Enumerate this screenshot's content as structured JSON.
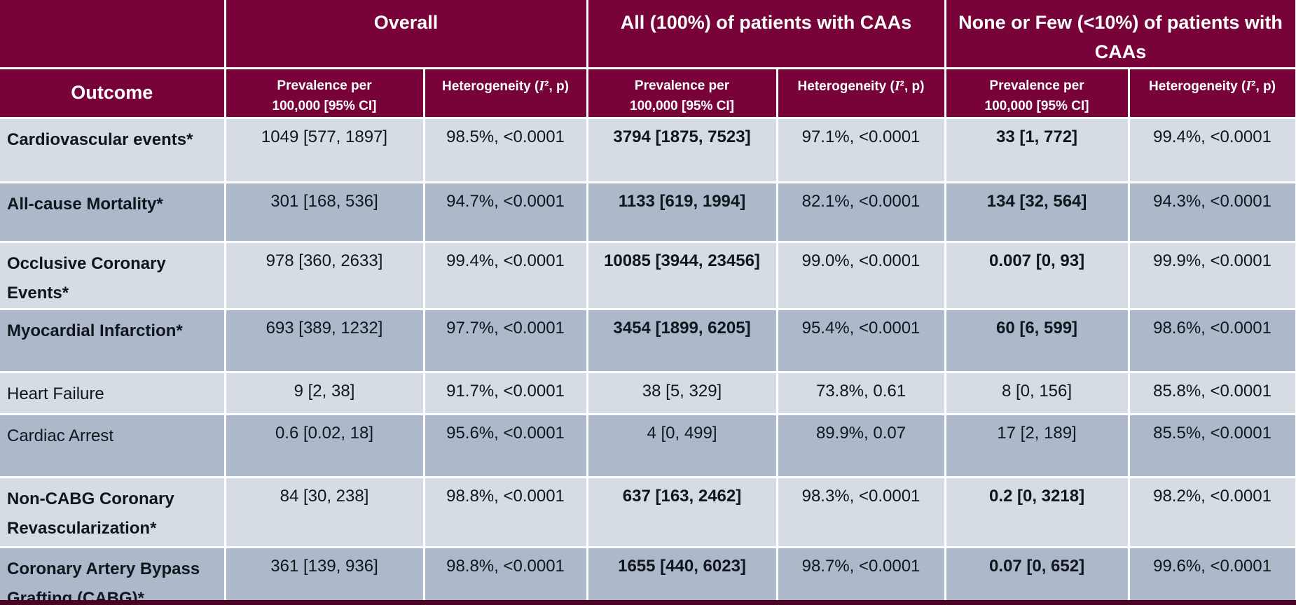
{
  "colors": {
    "header_maroon": "#770339",
    "row_light": "#d6dce4",
    "row_dark": "#adb9ca",
    "border_white": "#ffffff",
    "text_dark": "#10161e",
    "bottom_bar": "#4d0323"
  },
  "table": {
    "outcome_header": "Outcome",
    "col_groups": [
      {
        "label": "Overall"
      },
      {
        "label": "All (100%) of patients with CAAs"
      },
      {
        "label": "None or Few (<10%) of patients with CAAs"
      }
    ],
    "sub": {
      "prev_line1": "Prevalence per",
      "prev_line2": "100,000 [95% CI]",
      "het_prefix": "Heterogeneity (",
      "het_i": "I",
      "het_suffix": "², p)"
    },
    "rows": [
      {
        "outcome": "Cardiovascular events*",
        "emphasis": true,
        "overall_prev": "1049 [577, 1897]",
        "overall_het": "98.5%, <0.0001",
        "all_prev": "3794 [1875, 7523]",
        "all_het": "97.1%, <0.0001",
        "none_prev": "33 [1, 772]",
        "none_het": "99.4%, <0.0001"
      },
      {
        "outcome": "All-cause Mortality*",
        "emphasis": true,
        "overall_prev": "301 [168, 536]",
        "overall_het": "94.7%, <0.0001",
        "all_prev": "1133 [619, 1994]",
        "all_het": "82.1%, <0.0001",
        "none_prev": "134 [32, 564]",
        "none_het": "94.3%, <0.0001"
      },
      {
        "outcome": "Occlusive Coronary Events*",
        "emphasis": true,
        "overall_prev": "978 [360, 2633]",
        "overall_het": "99.4%, <0.0001",
        "all_prev": "10085 [3944, 23456]",
        "all_het": "99.0%, <0.0001",
        "none_prev": "0.007 [0, 93]",
        "none_het": "99.9%, <0.0001"
      },
      {
        "outcome": "Myocardial Infarction*",
        "emphasis": true,
        "overall_prev": "693 [389, 1232]",
        "overall_het": "97.7%, <0.0001",
        "all_prev": "3454 [1899, 6205]",
        "all_het": "95.4%, <0.0001",
        "none_prev": "60 [6, 599]",
        "none_het": "98.6%, <0.0001"
      },
      {
        "outcome": "Heart Failure",
        "emphasis": false,
        "overall_prev": "9 [2, 38]",
        "overall_het": "91.7%, <0.0001",
        "all_prev": "38 [5, 329]",
        "all_het": "73.8%, 0.61",
        "none_prev": "8 [0, 156]",
        "none_het": "85.8%, <0.0001"
      },
      {
        "outcome": "Cardiac Arrest",
        "emphasis": false,
        "overall_prev": "0.6 [0.02, 18]",
        "overall_het": "95.6%, <0.0001",
        "all_prev": "4 [0, 499]",
        "all_het": "89.9%, 0.07",
        "none_prev": "17 [2, 189]",
        "none_het": "85.5%, <0.0001"
      },
      {
        "outcome": "Non-CABG Coronary Revascularization*",
        "emphasis": true,
        "overall_prev": "84 [30, 238]",
        "overall_het": "98.8%, <0.0001",
        "all_prev": "637 [163, 2462]",
        "all_het": "98.3%, <0.0001",
        "none_prev": "0.2 [0, 3218]",
        "none_het": "98.2%, <0.0001"
      },
      {
        "outcome": "Coronary Artery Bypass Grafting (CABG)*",
        "emphasis": true,
        "overall_prev": "361 [139, 936]",
        "overall_het": "98.8%, <0.0001",
        "all_prev": "1655 [440, 6023]",
        "all_het": "98.7%, <0.0001",
        "none_prev": "0.07 [0, 652]",
        "none_het": "99.6%, <0.0001"
      }
    ]
  }
}
